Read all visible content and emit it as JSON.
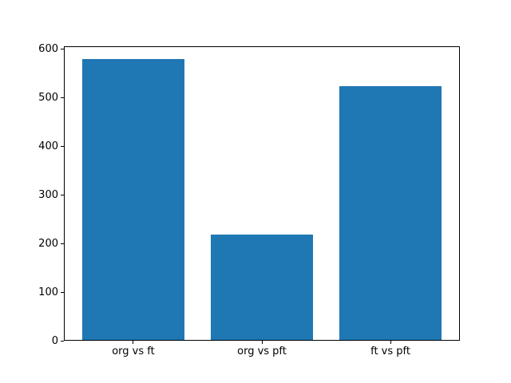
{
  "chart_data": {
    "type": "bar",
    "categories": [
      "org vs ft",
      "org vs pft",
      "ft vs pft"
    ],
    "values": [
      578,
      217,
      523
    ],
    "title": "",
    "xlabel": "",
    "ylabel": "",
    "ylim": [
      0,
      606
    ],
    "xlim": [
      -0.54,
      2.54
    ],
    "yticks": [
      0,
      100,
      200,
      300,
      400,
      500,
      600
    ],
    "bar_width": 0.8,
    "bar_color": "#1f77b4",
    "spine_color": "#000000",
    "background_color": "#ffffff",
    "grid": false,
    "legend_position": "none"
  }
}
